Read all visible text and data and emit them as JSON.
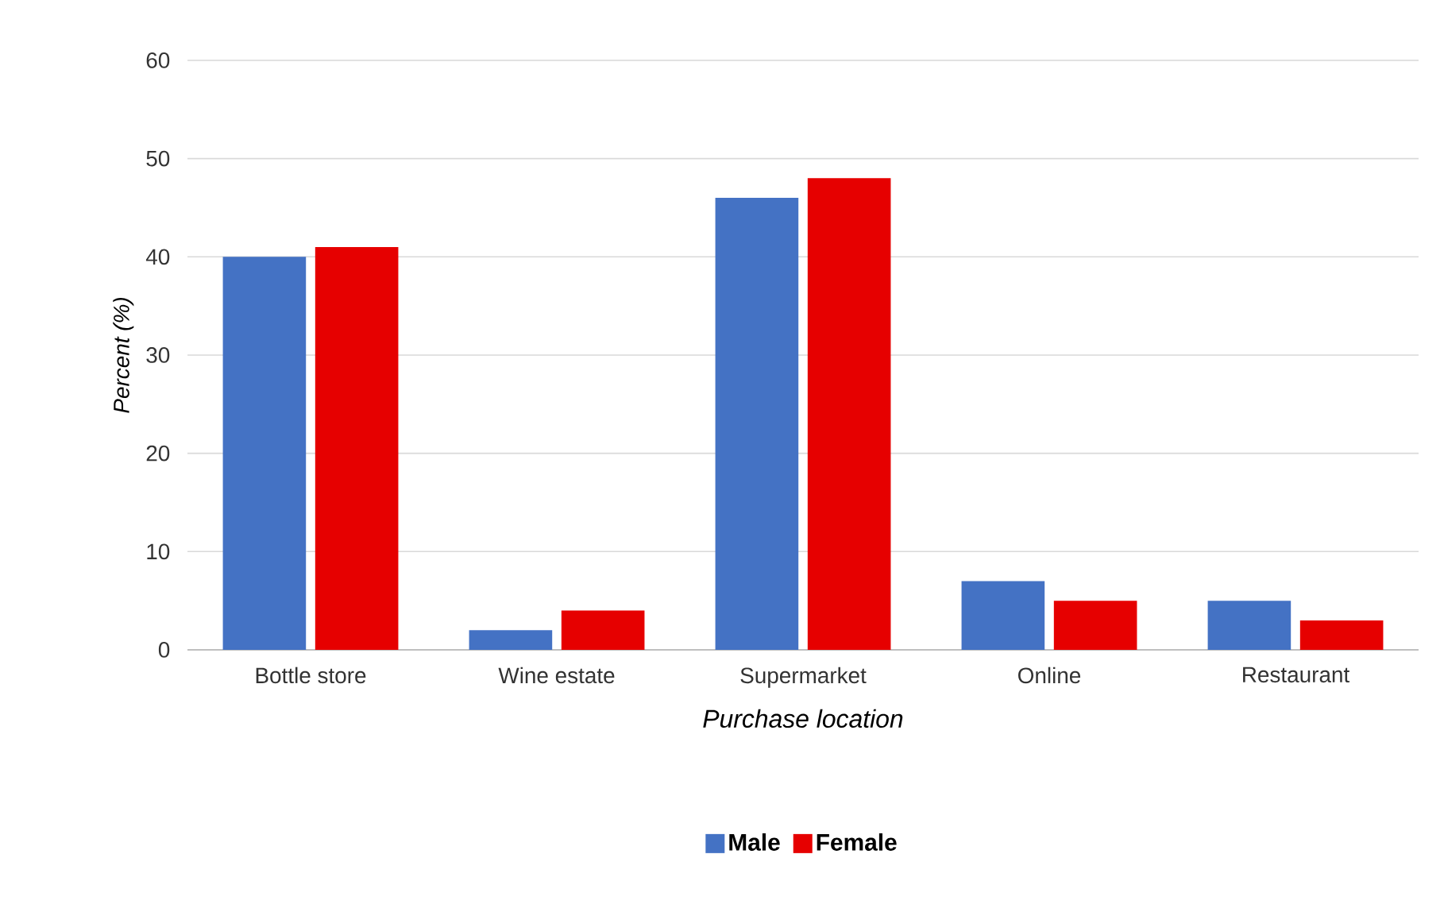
{
  "chart_data": {
    "type": "bar",
    "categories": [
      "Bottle store",
      "Wine estate",
      "Supermarket",
      "Online",
      "Restaurant"
    ],
    "series": [
      {
        "name": "Male",
        "color": "#4472c4",
        "values": [
          40,
          2,
          46,
          7,
          5
        ]
      },
      {
        "name": "Female",
        "color": "#e60000",
        "values": [
          41,
          4,
          48,
          5,
          3
        ]
      }
    ],
    "xlabel": "Purchase location",
    "ylabel": "Percent (%)",
    "ylim": [
      0,
      60
    ],
    "yticks": [
      0,
      10,
      20,
      30,
      40,
      50,
      60
    ],
    "grid": "y",
    "legend": "bottom"
  }
}
